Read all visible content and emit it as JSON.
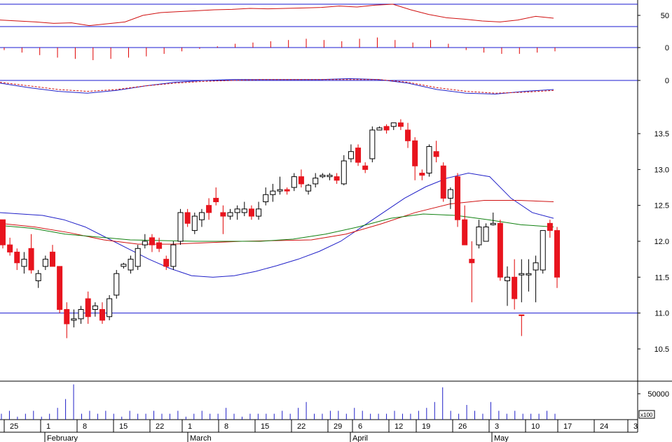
{
  "chart_data": {
    "type": "candlestick",
    "title": "",
    "price_axis": {
      "ylim": [
        10.1,
        13.9
      ],
      "ticks": [
        "10.5",
        "11.0",
        "11.5",
        "12.0",
        "12.5",
        "13.0",
        "13.5"
      ]
    },
    "date_labels": [
      "25",
      "1",
      "8",
      "15",
      "22",
      "1",
      "8",
      "15",
      "22",
      "29",
      "6",
      "12",
      "19",
      "26",
      "3",
      "10",
      "17",
      "24",
      "3"
    ],
    "month_labels": [
      "February",
      "March",
      "April",
      "May"
    ],
    "horizontal_line": 11.0,
    "candles": [
      [
        12.3,
        12.3,
        11.9,
        11.95
      ],
      [
        11.95,
        12.05,
        11.8,
        11.85
      ],
      [
        11.85,
        11.9,
        11.6,
        11.7
      ],
      [
        11.65,
        11.85,
        11.55,
        11.75
      ],
      [
        11.9,
        12.1,
        11.55,
        11.6
      ],
      [
        11.45,
        11.6,
        11.35,
        11.55
      ],
      [
        11.65,
        11.8,
        11.6,
        11.75
      ],
      [
        11.85,
        11.95,
        11.65,
        11.65
      ],
      [
        11.65,
        11.65,
        11.0,
        11.05
      ],
      [
        11.05,
        11.15,
        10.65,
        10.85
      ],
      [
        10.9,
        11.05,
        10.8,
        10.92
      ],
      [
        10.92,
        11.1,
        10.85,
        11.05
      ],
      [
        11.2,
        11.3,
        10.85,
        10.95
      ],
      [
        11.05,
        11.15,
        10.95,
        11.1
      ],
      [
        11.05,
        11.15,
        10.85,
        10.9
      ],
      [
        10.95,
        11.25,
        10.9,
        11.2
      ],
      [
        11.25,
        11.6,
        11.2,
        11.55
      ],
      [
        11.65,
        11.7,
        11.62,
        11.68
      ],
      [
        11.6,
        11.8,
        11.55,
        11.75
      ],
      [
        11.65,
        11.95,
        11.6,
        11.9
      ],
      [
        11.95,
        12.1,
        11.9,
        12.0
      ],
      [
        12.05,
        12.1,
        11.85,
        11.95
      ],
      [
        11.98,
        12.05,
        11.85,
        11.9
      ],
      [
        11.75,
        11.8,
        11.6,
        11.65
      ],
      [
        11.65,
        12.0,
        11.6,
        11.95
      ],
      [
        12.0,
        12.45,
        11.95,
        12.4
      ],
      [
        12.4,
        12.45,
        12.2,
        12.25
      ],
      [
        12.15,
        12.4,
        12.1,
        12.35
      ],
      [
        12.3,
        12.45,
        12.2,
        12.4
      ],
      [
        12.5,
        12.6,
        12.3,
        12.4
      ],
      [
        12.6,
        12.75,
        12.5,
        12.55
      ],
      [
        12.4,
        12.5,
        12.1,
        12.35
      ],
      [
        12.35,
        12.45,
        12.3,
        12.4
      ],
      [
        12.4,
        12.5,
        12.3,
        12.45
      ],
      [
        12.4,
        12.55,
        12.35,
        12.45
      ],
      [
        12.45,
        12.5,
        12.3,
        12.35
      ],
      [
        12.35,
        12.55,
        12.3,
        12.45
      ],
      [
        12.55,
        12.75,
        12.5,
        12.65
      ],
      [
        12.65,
        12.8,
        12.55,
        12.7
      ],
      [
        12.7,
        12.9,
        12.65,
        12.72
      ],
      [
        12.72,
        12.75,
        12.65,
        12.7
      ],
      [
        12.75,
        12.95,
        12.7,
        12.9
      ],
      [
        12.9,
        13.0,
        12.75,
        12.8
      ],
      [
        12.7,
        12.8,
        12.65,
        12.78
      ],
      [
        12.8,
        12.95,
        12.75,
        12.88
      ],
      [
        12.9,
        12.95,
        12.88,
        12.92
      ],
      [
        12.9,
        12.95,
        12.85,
        12.92
      ],
      [
        12.9,
        12.95,
        12.8,
        12.85
      ],
      [
        12.8,
        13.2,
        12.78,
        13.12
      ],
      [
        13.15,
        13.35,
        13.1,
        13.25
      ],
      [
        13.3,
        13.35,
        13.05,
        13.1
      ],
      [
        13.05,
        13.1,
        12.95,
        13.0
      ],
      [
        13.15,
        13.6,
        13.1,
        13.55
      ],
      [
        13.55,
        13.6,
        13.55,
        13.58
      ],
      [
        13.6,
        13.63,
        13.5,
        13.55
      ],
      [
        13.6,
        13.65,
        13.55,
        13.65
      ],
      [
        13.65,
        13.7,
        13.55,
        13.6
      ],
      [
        13.55,
        13.65,
        13.3,
        13.4
      ],
      [
        13.4,
        13.45,
        12.85,
        13.05
      ],
      [
        12.95,
        13.0,
        12.85,
        12.92
      ],
      [
        12.95,
        13.35,
        12.9,
        13.32
      ],
      [
        13.25,
        13.4,
        13.1,
        13.18
      ],
      [
        13.05,
        13.1,
        12.55,
        12.6
      ],
      [
        12.6,
        12.75,
        12.45,
        12.72
      ],
      [
        12.9,
        12.95,
        12.2,
        12.3
      ],
      [
        12.3,
        12.5,
        11.95,
        11.95
      ],
      [
        11.75,
        12.0,
        11.15,
        11.7
      ],
      [
        11.95,
        12.3,
        11.9,
        12.2
      ],
      [
        12.0,
        12.25,
        12.0,
        12.2
      ],
      [
        12.25,
        12.4,
        12.22,
        12.25
      ],
      [
        12.25,
        12.3,
        11.45,
        11.5
      ],
      [
        11.45,
        11.65,
        11.1,
        11.5
      ],
      [
        11.5,
        11.75,
        11.05,
        11.2
      ],
      [
        11.55,
        11.75,
        11.15,
        11.55
      ],
      [
        11.55,
        11.75,
        11.3,
        11.55
      ],
      [
        11.6,
        11.8,
        11.15,
        11.7
      ],
      [
        11.6,
        12.15,
        11.55,
        12.15
      ],
      [
        12.25,
        12.3,
        12.05,
        12.15
      ],
      [
        12.15,
        12.2,
        11.35,
        11.5
      ]
    ],
    "doji_highlight": {
      "index": 73,
      "value": 10.97,
      "low": 10.68
    },
    "ma_blue": [
      12.4,
      12.38,
      12.36,
      12.3,
      12.2,
      12.05,
      11.9,
      11.75,
      11.62,
      11.52,
      11.5,
      11.52,
      11.58,
      11.66,
      11.75,
      11.86,
      12.0,
      12.2,
      12.4,
      12.6,
      12.76,
      12.88,
      12.95,
      12.9,
      12.6,
      12.4,
      12.32
    ],
    "ma_red": [
      12.25,
      12.2,
      12.12,
      12.02,
      11.96,
      11.96,
      11.98,
      12.0,
      12.01,
      12.02,
      12.1,
      12.24,
      12.4,
      12.52,
      12.57,
      12.57,
      12.55
    ],
    "ma_green": [
      12.22,
      12.18,
      12.1,
      12.06,
      12.02,
      12.01,
      12.0,
      12.0,
      12.0,
      12.03,
      12.1,
      12.2,
      12.32,
      12.38,
      12.36,
      12.3,
      12.23,
      12.2
    ],
    "rsi": {
      "ticks": [
        "50"
      ],
      "values": [
        40,
        38,
        36,
        33,
        34,
        28,
        32,
        36,
        50,
        56,
        58,
        60,
        62,
        63,
        65,
        64,
        65,
        66,
        67,
        70,
        68,
        72,
        74,
        62,
        52,
        45,
        42,
        38,
        36,
        40,
        48,
        44
      ]
    },
    "histogram": {
      "ticks": [
        "0"
      ],
      "values": [
        -2,
        -4,
        -6,
        -8,
        -9,
        -10,
        -9,
        -8,
        -7,
        -5,
        -3,
        -1,
        1,
        3,
        4,
        5,
        6,
        7,
        6,
        5,
        7,
        8,
        6,
        4,
        6,
        3,
        -2,
        -4,
        -5,
        -5,
        -4,
        -3
      ]
    },
    "macd": {
      "ticks": [
        "0"
      ],
      "macd_line": [
        -3,
        -8,
        -12,
        -14,
        -11,
        -6,
        -2,
        0,
        1,
        1,
        1,
        1,
        2,
        1,
        -3,
        -10,
        -14,
        -15,
        -12,
        -10
      ],
      "signal_line": [
        -2,
        -6,
        -10,
        -12,
        -10,
        -6,
        -3,
        -1,
        0,
        1,
        1,
        1,
        1,
        1,
        -2,
        -8,
        -12,
        -14,
        -13,
        -11
      ]
    },
    "volume": {
      "ticks": [
        "50000"
      ],
      "multiplier": "x100",
      "values": [
        2,
        3,
        1,
        2,
        3,
        1,
        2,
        4,
        7,
        12,
        2,
        3,
        2,
        3,
        2,
        1,
        3,
        2,
        2,
        3,
        2,
        2,
        3,
        1,
        2,
        3,
        2,
        2,
        4,
        2,
        1,
        2,
        2,
        2,
        2,
        3,
        2,
        4,
        6,
        2,
        2,
        3,
        3,
        2,
        4,
        3,
        2,
        2,
        2,
        3,
        2,
        2,
        3,
        4,
        6,
        11,
        3,
        2,
        5,
        3,
        2,
        6,
        3,
        2,
        3,
        2,
        2,
        2,
        3,
        2
      ]
    }
  }
}
